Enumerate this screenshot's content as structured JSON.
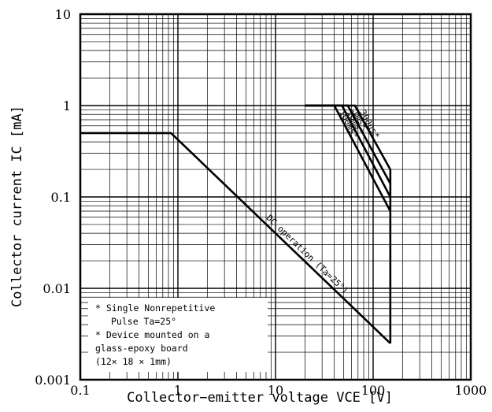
{
  "chart_data": {
    "type": "line",
    "title": "",
    "xlabel": "Collector−emitter voltage  VCE [V]",
    "ylabel": "Collector current  IC [mA]",
    "xscale": "log",
    "yscale": "log",
    "xlim": [
      0.1,
      1000
    ],
    "ylim": [
      0.001,
      10
    ],
    "grid": true,
    "x_ticks": [
      "0.1",
      "1",
      "10",
      "100",
      "1000"
    ],
    "y_ticks": [
      "0.001",
      "0.01",
      "0.1",
      "1",
      "10"
    ],
    "series": [
      {
        "name": "DC operation (Ta=25°)",
        "points": [
          [
            0.1,
            0.5
          ],
          [
            0.85,
            0.5
          ],
          [
            150,
            0.0025
          ]
        ]
      },
      {
        "name": "100ms*",
        "points": [
          [
            20,
            1.0
          ],
          [
            40,
            1.0
          ],
          [
            150,
            0.07
          ]
        ]
      },
      {
        "name": "10ms*",
        "points": [
          [
            20,
            1.0
          ],
          [
            48,
            1.0
          ],
          [
            150,
            0.1
          ]
        ]
      },
      {
        "name": "1ms*",
        "points": [
          [
            20,
            1.0
          ],
          [
            55,
            1.0
          ],
          [
            150,
            0.14
          ]
        ]
      },
      {
        "name": "300μs*",
        "points": [
          [
            20,
            1.0
          ],
          [
            65,
            1.0
          ],
          [
            150,
            0.2
          ]
        ]
      }
    ],
    "vce_max": {
      "x": 150,
      "y_range": [
        0.0025,
        0.2
      ]
    },
    "annotations": [
      "* Single Nonrepetitive",
      "Pulse Ta=25°",
      "* Device mounted on a",
      "glass-epoxy board",
      "(12× 18 × 1mm)"
    ]
  }
}
